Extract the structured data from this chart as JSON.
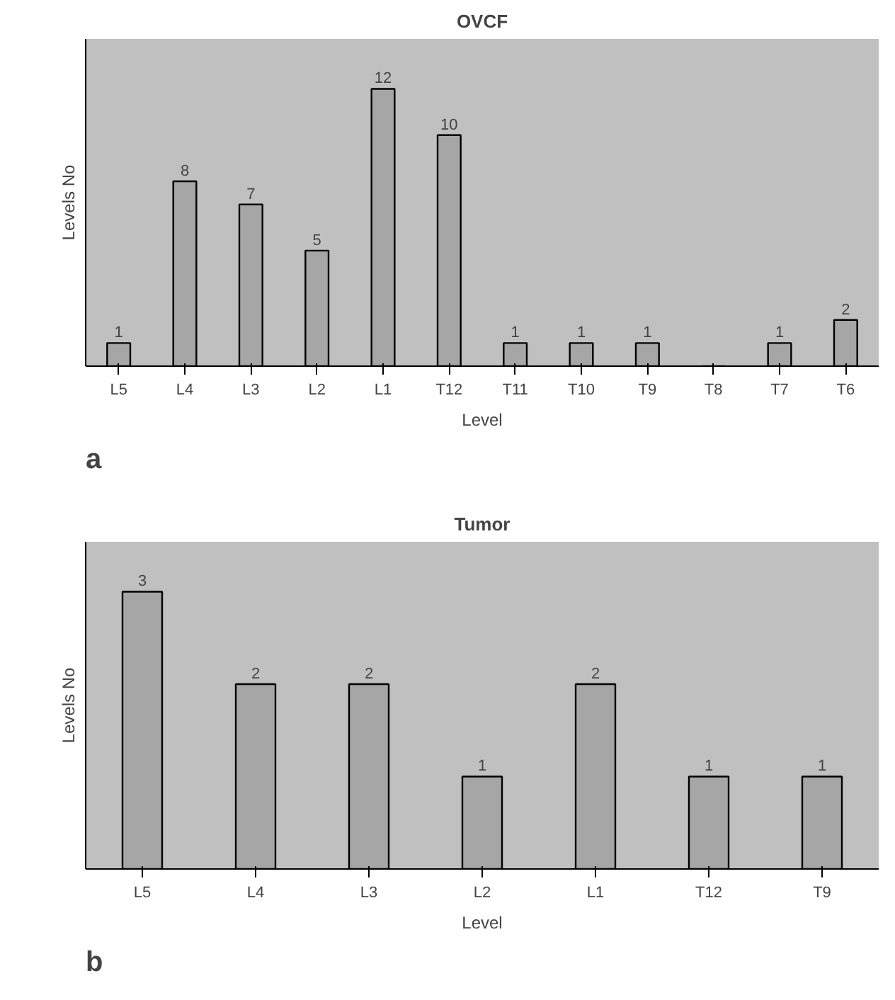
{
  "chart_data": [
    {
      "type": "bar",
      "title": "OVCF",
      "xlabel": "Level",
      "ylabel": "Levels No",
      "annotations": [
        "a"
      ],
      "categories": [
        "L5",
        "L4",
        "L3",
        "L2",
        "L1",
        "T12",
        "T11",
        "T10",
        "T9",
        "T8",
        "T7",
        "T6"
      ],
      "series": [
        {
          "color": "#a6a6a6",
          "values": [
            1,
            8,
            7,
            5,
            12,
            10,
            1,
            1,
            1,
            null,
            1,
            2
          ],
          "value_labels": [
            "1",
            "8",
            "7",
            "5",
            "12",
            "10",
            "1",
            "1",
            "1",
            null,
            "1",
            "2"
          ]
        }
      ]
    },
    {
      "type": "bar",
      "title": "Tumor",
      "xlabel": "Level",
      "ylabel": "Levels No",
      "annotations": [
        "b"
      ],
      "categories": [
        "L5",
        "L4",
        "L3",
        "L2",
        "L1",
        "T12",
        "T9"
      ],
      "series": [
        {
          "color": "#a6a6a6",
          "values": [
            3,
            2,
            2,
            1,
            2,
            1,
            1
          ]
        }
      ],
      "data_labels": true
    }
  ]
}
